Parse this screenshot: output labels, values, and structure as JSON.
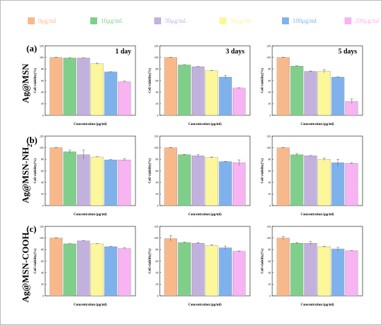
{
  "legend": {
    "entries": [
      "0μg/ml",
      "10μg/ml",
      "30μg/ml",
      "50μg/ml",
      "100μg/ml",
      "200μg/ml"
    ],
    "colors": [
      "#f8b98a",
      "#7fcf8a",
      "#c3b1dd",
      "#fbf79a",
      "#7fb2ec",
      "#f7b3f2"
    ]
  },
  "rows": [
    {
      "letter": "(a)",
      "label": "Ag@MSN"
    },
    {
      "letter": "(b)",
      "label": "Ag@MSN-NH",
      "label_sub": "2"
    },
    {
      "letter": "(c)",
      "label": "Ag@MSN-COOH"
    }
  ],
  "chart_data": [
    {
      "type": "bar",
      "row": 0,
      "col": 0,
      "title": "1 day",
      "categories": [
        "0μg/ml",
        "10μg/ml",
        "30μg/ml",
        "50μg/ml",
        "100μg/ml",
        "200μg/ml"
      ],
      "values": [
        100,
        99,
        99,
        89,
        75,
        58
      ],
      "errors": [
        0.5,
        0.5,
        0.5,
        1,
        0.5,
        1
      ],
      "xlabel": "Concentration (μg/ml)",
      "ylabel": "Cell viability(%)",
      "ylim": [
        0,
        120
      ],
      "yticks": [
        0,
        20,
        40,
        60,
        80,
        100,
        120
      ]
    },
    {
      "type": "bar",
      "row": 0,
      "col": 1,
      "title": "3 days",
      "categories": [
        "0μg/ml",
        "10μg/ml",
        "30μg/ml",
        "50μg/ml",
        "100μg/ml",
        "200μg/ml"
      ],
      "values": [
        100,
        87,
        84,
        77,
        66,
        47
      ],
      "errors": [
        0.5,
        0.5,
        0.5,
        0.5,
        3,
        0.5
      ],
      "xlabel": "Concentration (μg/ml)",
      "ylabel": "Cell viability(%)",
      "ylim": [
        0,
        120
      ],
      "yticks": [
        0,
        20,
        40,
        60,
        80,
        100,
        120
      ]
    },
    {
      "type": "bar",
      "row": 0,
      "col": 2,
      "title": "5 days",
      "categories": [
        "0μg/ml",
        "10μg/ml",
        "30μg/ml",
        "50μg/ml",
        "100μg/ml",
        "200μg/ml"
      ],
      "values": [
        100,
        85,
        76,
        76,
        66,
        24
      ],
      "errors": [
        0.5,
        0.5,
        0.5,
        3,
        0.5,
        4
      ],
      "xlabel": "Concentration (μg/ml)",
      "ylabel": "Cell viability(%)",
      "ylim": [
        0,
        120
      ],
      "yticks": [
        0,
        20,
        40,
        60,
        80,
        100,
        120
      ]
    },
    {
      "type": "bar",
      "row": 1,
      "col": 0,
      "title": "",
      "categories": [
        "0μg/ml",
        "10μg/ml",
        "30μg/ml",
        "50μg/ml",
        "100μg/ml",
        "200μg/ml"
      ],
      "values": [
        100,
        93,
        88,
        84,
        79,
        79
      ],
      "errors": [
        0.5,
        3,
        8,
        0.5,
        0.5,
        2
      ],
      "xlabel": "Concentration (μg/ml)",
      "ylabel": "Cell viability(%)",
      "ylim": [
        0,
        120
      ],
      "yticks": [
        0,
        20,
        40,
        60,
        80,
        100,
        120
      ]
    },
    {
      "type": "bar",
      "row": 1,
      "col": 1,
      "title": "",
      "categories": [
        "0μg/ml",
        "10μg/ml",
        "30μg/ml",
        "50μg/ml",
        "100μg/ml",
        "200μg/ml"
      ],
      "values": [
        100,
        88,
        86,
        83,
        76,
        74
      ],
      "errors": [
        0.5,
        0.5,
        2,
        1,
        0.5,
        5
      ],
      "xlabel": "Concentration (μg/ml)",
      "ylabel": "Cell viability(%)",
      "ylim": [
        0,
        120
      ],
      "yticks": [
        0,
        20,
        40,
        60,
        80,
        100,
        120
      ]
    },
    {
      "type": "bar",
      "row": 1,
      "col": 2,
      "title": "",
      "categories": [
        "0μg/ml",
        "10μg/ml",
        "30μg/ml",
        "50μg/ml",
        "100μg/ml",
        "200μg/ml"
      ],
      "values": [
        100,
        88,
        86,
        80,
        74,
        73
      ],
      "errors": [
        0.5,
        2,
        0.5,
        2,
        6,
        1
      ],
      "xlabel": "Concentration (μg/ml)",
      "ylabel": "Cell viability(%)",
      "ylim": [
        0,
        120
      ],
      "yticks": [
        0,
        20,
        40,
        60,
        80,
        100,
        120
      ]
    },
    {
      "type": "bar",
      "row": 2,
      "col": 0,
      "title": "",
      "categories": [
        "0μg/ml",
        "10μg/ml",
        "30μg/ml",
        "50μg/ml",
        "100μg/ml",
        "200μg/ml"
      ],
      "values": [
        100,
        90,
        95,
        90,
        85,
        82
      ],
      "errors": [
        0.5,
        0.5,
        0.5,
        0.5,
        0.5,
        1
      ],
      "xlabel": "Concentration (μg/ml)",
      "ylabel": "Cell viability(%)",
      "ylim": [
        0,
        120
      ],
      "yticks": [
        0,
        20,
        40,
        60,
        80,
        100,
        120
      ]
    },
    {
      "type": "bar",
      "row": 2,
      "col": 1,
      "title": "",
      "categories": [
        "0μg/ml",
        "10μg/ml",
        "30μg/ml",
        "50μg/ml",
        "100μg/ml",
        "200μg/ml"
      ],
      "values": [
        99,
        92,
        91,
        87,
        83,
        77
      ],
      "errors": [
        5,
        1,
        1,
        1,
        3,
        0.5
      ],
      "xlabel": "Concentration (μg/ml)",
      "ylabel": "Cell viability(%)",
      "ylim": [
        0,
        120
      ],
      "yticks": [
        0,
        20,
        40,
        60,
        80,
        100,
        120
      ]
    },
    {
      "type": "bar",
      "row": 2,
      "col": 2,
      "title": "",
      "categories": [
        "0μg/ml",
        "10μg/ml",
        "30μg/ml",
        "50μg/ml",
        "100μg/ml",
        "200μg/ml"
      ],
      "values": [
        100,
        91,
        91,
        85,
        81,
        78
      ],
      "errors": [
        3,
        1,
        3,
        1,
        3,
        0.5
      ],
      "xlabel": "Concentration (μg/ml)",
      "ylabel": "Cell viability(%)",
      "ylim": [
        0,
        120
      ],
      "yticks": [
        0,
        20,
        40,
        60,
        80,
        100,
        120
      ]
    }
  ]
}
